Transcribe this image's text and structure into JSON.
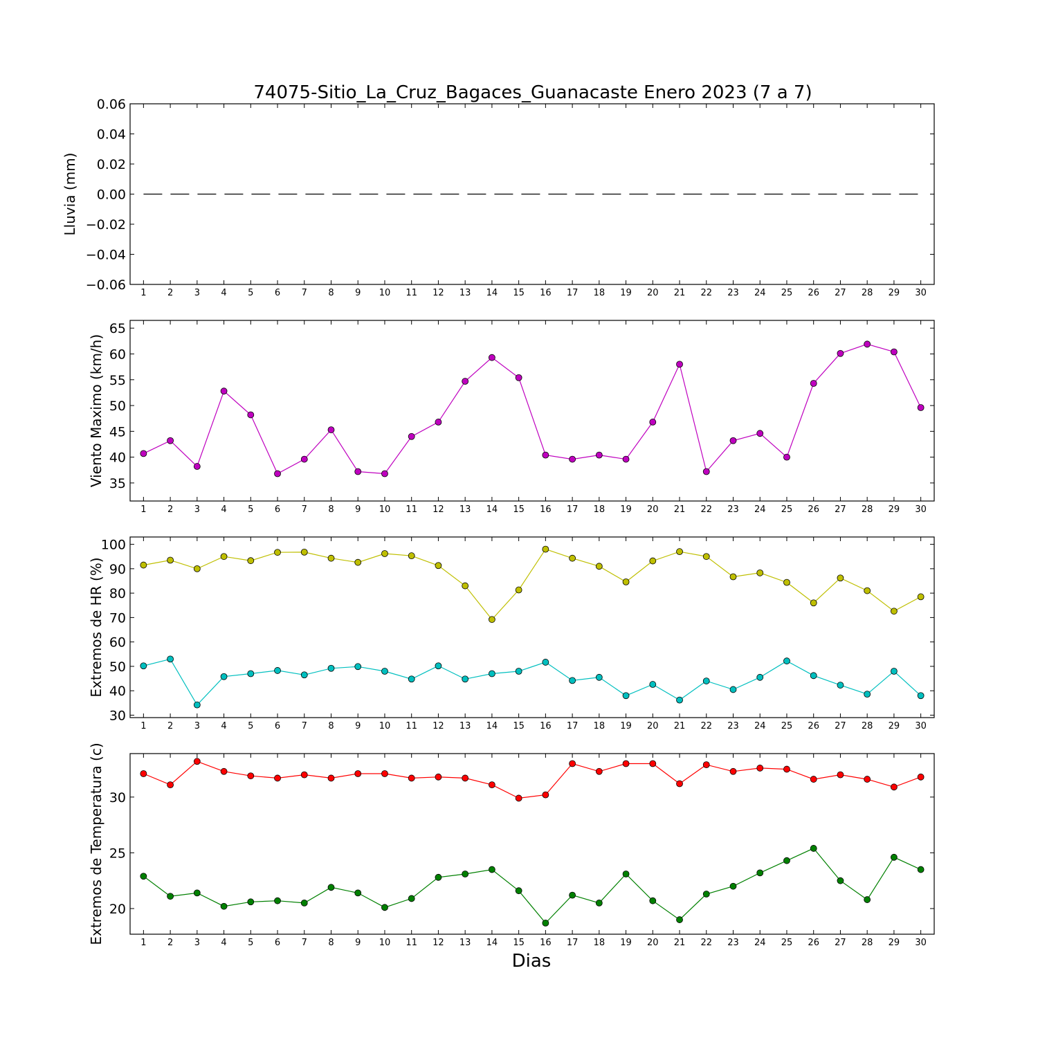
{
  "title": "74075-Sitio_La_Cruz_Bagaces_Guanacaste Enero 2023  (7 a 7)",
  "xlabel": "Dias",
  "chart_data": [
    {
      "type": "line",
      "ylabel": "Lluvia (mm)",
      "x": [
        1,
        2,
        3,
        4,
        5,
        6,
        7,
        8,
        9,
        10,
        11,
        12,
        13,
        14,
        15,
        16,
        17,
        18,
        19,
        20,
        21,
        22,
        23,
        24,
        25,
        26,
        27,
        28,
        29,
        30
      ],
      "ylim": [
        -0.06,
        0.06
      ],
      "yticks": [
        0.06,
        0.04,
        0.02,
        0.0,
        -0.02,
        -0.04,
        -0.06
      ],
      "ytick_labels": [
        "0.06",
        "0.04",
        "0.02",
        "0.00",
        "−0.02",
        "−0.04",
        "−0.06"
      ],
      "series": [
        {
          "color": "#000000",
          "style": "dashed",
          "marker": false,
          "values": [
            0,
            0,
            0,
            0,
            0,
            0,
            0,
            0,
            0,
            0,
            0,
            0,
            0,
            0,
            0,
            0,
            0,
            0,
            0,
            0,
            0,
            0,
            0,
            0,
            0,
            0,
            0,
            0,
            0,
            0
          ]
        }
      ]
    },
    {
      "type": "line",
      "ylabel": "Viento Maximo (km/h)",
      "x": [
        1,
        2,
        3,
        4,
        5,
        6,
        7,
        8,
        9,
        10,
        11,
        12,
        13,
        14,
        15,
        16,
        17,
        18,
        19,
        20,
        21,
        22,
        23,
        24,
        25,
        26,
        27,
        28,
        29,
        30
      ],
      "ylim": [
        31.5,
        66.5
      ],
      "yticks": [
        65,
        60,
        55,
        50,
        45,
        40,
        35
      ],
      "ytick_labels": [
        "65",
        "60",
        "55",
        "50",
        "45",
        "40",
        "35"
      ],
      "series": [
        {
          "color": "#bf00bf",
          "style": "solid",
          "marker": true,
          "values": [
            40.7,
            43.2,
            38.2,
            52.8,
            48.2,
            36.8,
            39.6,
            45.3,
            37.2,
            36.8,
            44,
            46.8,
            54.7,
            59.3,
            55.4,
            40.4,
            39.6,
            40.4,
            39.6,
            46.8,
            58,
            37.2,
            43.2,
            44.6,
            40,
            54.3,
            60.1,
            61.9,
            60.4,
            49.6
          ]
        }
      ]
    },
    {
      "type": "line",
      "ylabel": "Extremos de HR (%)",
      "x": [
        1,
        2,
        3,
        4,
        5,
        6,
        7,
        8,
        9,
        10,
        11,
        12,
        13,
        14,
        15,
        16,
        17,
        18,
        19,
        20,
        21,
        22,
        23,
        24,
        25,
        26,
        27,
        28,
        29,
        30
      ],
      "ylim": [
        29,
        103
      ],
      "yticks": [
        100,
        90,
        80,
        70,
        60,
        50,
        40,
        30
      ],
      "ytick_labels": [
        "100",
        "90",
        "80",
        "70",
        "60",
        "50",
        "40",
        "30"
      ],
      "series": [
        {
          "color": "#bfbf00",
          "style": "solid",
          "marker": true,
          "values": [
            91.5,
            93.5,
            90,
            95,
            93.3,
            96.7,
            96.8,
            94.3,
            92.6,
            96.2,
            95.3,
            91.3,
            83,
            69.2,
            81.3,
            98,
            94.3,
            91,
            84.6,
            93.2,
            97,
            95,
            86.7,
            88.3,
            84.4,
            76,
            86.2,
            81,
            72.6,
            78.5
          ]
        },
        {
          "color": "#00bfbf",
          "style": "solid",
          "marker": true,
          "values": [
            50.2,
            53,
            34.2,
            45.8,
            47,
            48.3,
            46.5,
            49.2,
            49.9,
            48,
            44.8,
            50.2,
            44.8,
            47,
            48,
            51.7,
            44.2,
            45.5,
            38,
            42.6,
            36.2,
            44,
            40.5,
            45.5,
            52.2,
            46.2,
            42.3,
            38.6,
            48,
            38
          ]
        }
      ]
    },
    {
      "type": "line",
      "ylabel": "Extremos de Temperatura (c)",
      "x": [
        1,
        2,
        3,
        4,
        5,
        6,
        7,
        8,
        9,
        10,
        11,
        12,
        13,
        14,
        15,
        16,
        17,
        18,
        19,
        20,
        21,
        22,
        23,
        24,
        25,
        26,
        27,
        28,
        29,
        30
      ],
      "ylim": [
        17.7,
        33.9
      ],
      "yticks": [
        30,
        25,
        20
      ],
      "ytick_labels": [
        "30",
        "25",
        "20"
      ],
      "series": [
        {
          "color": "#ff0000",
          "style": "solid",
          "marker": true,
          "values": [
            32.1,
            31.1,
            33.2,
            32.3,
            31.9,
            31.7,
            32,
            31.7,
            32.1,
            32.1,
            31.7,
            31.8,
            31.7,
            31.1,
            29.9,
            30.2,
            33,
            32.3,
            33,
            33,
            31.2,
            32.9,
            32.3,
            32.6,
            32.5,
            31.6,
            32,
            31.6,
            30.9,
            31.8
          ]
        },
        {
          "color": "#008000",
          "style": "solid",
          "marker": true,
          "values": [
            22.9,
            21.1,
            21.4,
            20.2,
            20.6,
            20.7,
            20.5,
            21.9,
            21.4,
            20.1,
            20.9,
            22.8,
            23.1,
            23.5,
            21.6,
            18.7,
            21.2,
            20.5,
            23.1,
            20.7,
            19,
            21.3,
            22,
            23.2,
            24.3,
            25.4,
            22.5,
            20.8,
            24.6,
            23.5
          ]
        }
      ]
    }
  ]
}
